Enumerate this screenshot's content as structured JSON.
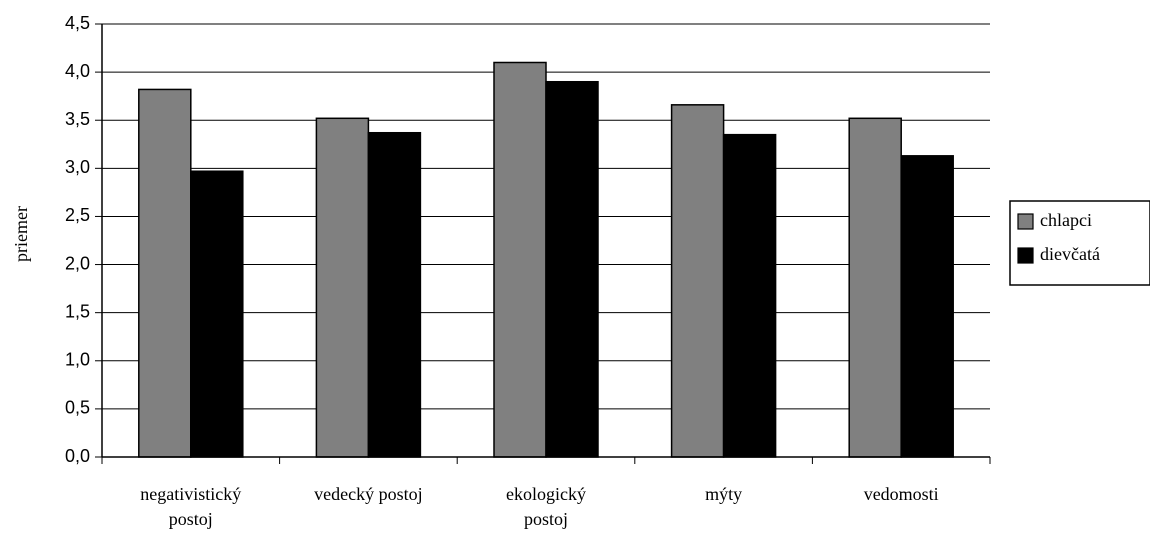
{
  "chart_data": {
    "type": "bar",
    "title": "",
    "xlabel": "",
    "ylabel": "priemer",
    "ylim": [
      0,
      4.5
    ],
    "ytick_step": 0.5,
    "yticks": [
      "0,0",
      "0,5",
      "1,0",
      "1,5",
      "2,0",
      "2,5",
      "3,0",
      "3,5",
      "4,0",
      "4,5"
    ],
    "grid": true,
    "legend_position": "right",
    "categories": [
      [
        "negativistický",
        "postoj"
      ],
      [
        "vedecký postoj"
      ],
      [
        "ekologický",
        "postoj"
      ],
      [
        "mýty"
      ],
      [
        "vedomosti"
      ]
    ],
    "series": [
      {
        "name": "chlapci",
        "color": "#808080",
        "values": [
          3.82,
          3.52,
          4.1,
          3.66,
          3.52
        ]
      },
      {
        "name": "dievčatá",
        "color": "#000000",
        "values": [
          2.97,
          3.37,
          3.9,
          3.35,
          3.13
        ]
      }
    ]
  }
}
